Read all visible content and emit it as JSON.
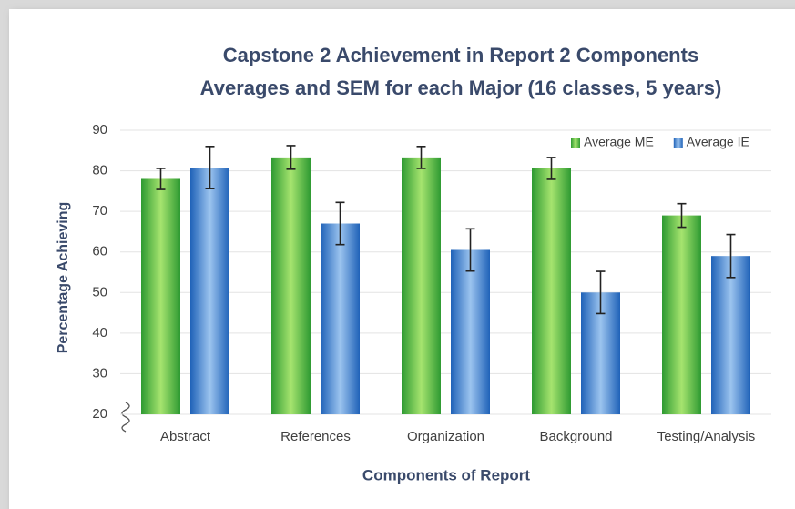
{
  "chart_data": {
    "type": "bar",
    "title": "Capstone 2 Achievement in Report 2 Components",
    "subtitle": "Averages and SEM for each Major (16 classes, 5 years)",
    "x_label": "Components of Report",
    "y_label": "Percentage Achieving",
    "categories": [
      "Abstract",
      "References",
      "Organization",
      "Background",
      "Testing/Analysis"
    ],
    "series": [
      {
        "name": "Average ME",
        "color": "#2e9a32",
        "values": [
          78,
          83.3,
          83.3,
          80.6,
          69
        ],
        "errors": [
          2.6,
          2.9,
          2.7,
          2.7,
          2.9
        ]
      },
      {
        "name": "Average IE",
        "color": "#1f62b8",
        "values": [
          80.8,
          67,
          60.5,
          50,
          59
        ],
        "errors": [
          5.2,
          5.2,
          5.2,
          5.2,
          5.3
        ]
      }
    ],
    "ylim": [
      20,
      90
    ],
    "yticks": [
      20,
      30,
      40,
      50,
      60,
      70,
      80,
      90
    ],
    "grid": true,
    "legend": "top-right"
  }
}
